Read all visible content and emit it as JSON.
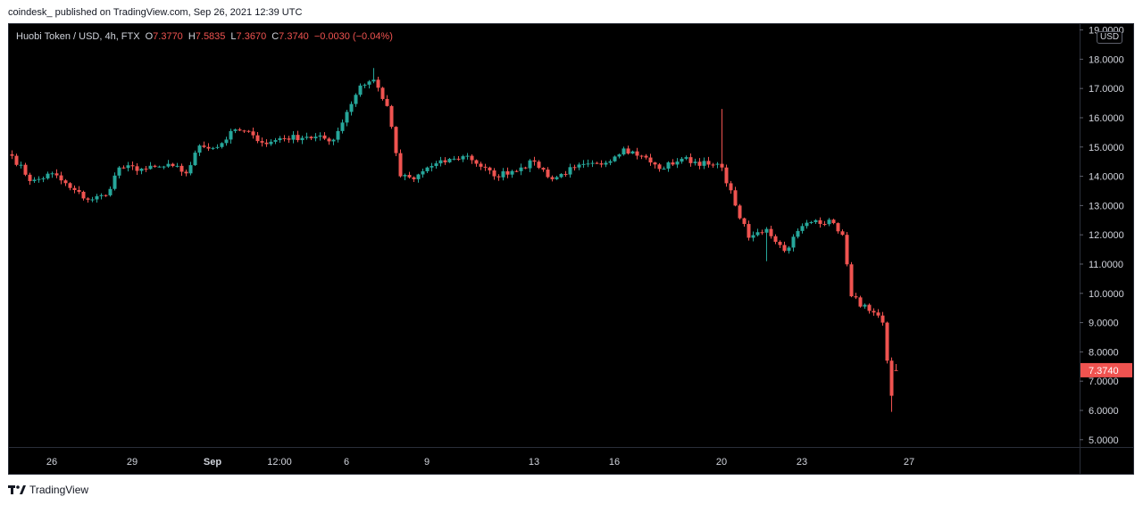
{
  "header": {
    "publisher": "coindesk_ published on TradingView.com, Sep 26, 2021 12:39 UTC"
  },
  "legend": {
    "symbol": "Huobi Token / USD, 4h, FTX",
    "open_label": "O",
    "open": "7.3770",
    "high_label": "H",
    "high": "7.5835",
    "low_label": "L",
    "low": "7.3670",
    "close_label": "C",
    "close": "7.3740",
    "change": "−0.0030 (−0.04%)"
  },
  "price_axis": {
    "unit": "USD",
    "labels": [
      "5.0000",
      "6.0000",
      "7.0000",
      "8.0000",
      "9.0000",
      "10.0000",
      "11.0000",
      "12.0000",
      "13.0000",
      "14.0000",
      "15.0000",
      "16.0000",
      "17.0000",
      "18.0000",
      "19.0000"
    ],
    "last_price": "7.3740"
  },
  "time_axis": {
    "labels": [
      "26",
      "29",
      "Sep",
      "12:00",
      "6",
      "9",
      "13",
      "16",
      "20",
      "23",
      "27"
    ],
    "bold": [
      "Sep"
    ]
  },
  "footer": {
    "brand": "TradingView",
    "icon": "tradingview-logo-icon"
  },
  "colors": {
    "up": "#26a69a",
    "down": "#ef5350",
    "background": "#000000",
    "axis_text": "#d1d4dc",
    "last_price_bg": "#ef5350"
  },
  "chart_data": {
    "type": "candlestick",
    "interval": "4h",
    "title": "Huobi Token / USD, 4h, FTX",
    "ylabel": "USD",
    "ylim": [
      4.75,
      19.2
    ],
    "x_ticks": [
      {
        "label": "26",
        "date": "2021-08-26"
      },
      {
        "label": "29",
        "date": "2021-08-29"
      },
      {
        "label": "Sep",
        "date": "2021-09-01"
      },
      {
        "label": "12:00",
        "date": "2021-09-03 12:00"
      },
      {
        "label": "6",
        "date": "2021-09-06"
      },
      {
        "label": "9",
        "date": "2021-09-09"
      },
      {
        "label": "13",
        "date": "2021-09-13"
      },
      {
        "label": "16",
        "date": "2021-09-16"
      },
      {
        "label": "20",
        "date": "2021-09-20"
      },
      {
        "label": "23",
        "date": "2021-09-23"
      },
      {
        "label": "27",
        "date": "2021-09-27"
      }
    ],
    "anchors": [
      [
        "2021-08-24 12:00",
        14.7
      ],
      [
        "2021-08-25 06:00",
        13.8
      ],
      [
        "2021-08-26 00:00",
        14.1
      ],
      [
        "2021-08-26 16:00",
        13.6
      ],
      [
        "2021-08-27 08:00",
        13.2
      ],
      [
        "2021-08-28 00:00",
        13.35
      ],
      [
        "2021-08-28 12:00",
        14.3
      ],
      [
        "2021-08-29 12:00",
        14.25
      ],
      [
        "2021-08-30 12:00",
        14.35
      ],
      [
        "2021-08-31 00:00",
        14.1
      ],
      [
        "2021-08-31 12:00",
        15.05
      ],
      [
        "2021-09-01 04:00",
        15.0
      ],
      [
        "2021-09-01 20:00",
        15.6
      ],
      [
        "2021-09-02 12:00",
        15.4
      ],
      [
        "2021-09-03 00:00",
        15.1
      ],
      [
        "2021-09-03 12:00",
        15.3
      ],
      [
        "2021-09-04 12:00",
        15.35
      ],
      [
        "2021-09-05 12:00",
        15.25
      ],
      [
        "2021-09-06 00:00",
        16.2
      ],
      [
        "2021-09-06 12:00",
        17.1
      ],
      [
        "2021-09-07 00:00",
        17.3
      ],
      [
        "2021-09-07 12:00",
        16.4
      ],
      [
        "2021-09-08 00:00",
        14.0
      ],
      [
        "2021-09-08 12:00",
        13.9
      ],
      [
        "2021-09-09 00:00",
        14.3
      ],
      [
        "2021-09-10 00:00",
        14.6
      ],
      [
        "2021-09-10 12:00",
        14.7
      ],
      [
        "2021-09-11 12:00",
        14.0
      ],
      [
        "2021-09-12 12:00",
        14.3
      ],
      [
        "2021-09-13 00:00",
        14.5
      ],
      [
        "2021-09-13 16:00",
        13.9
      ],
      [
        "2021-09-14 12:00",
        14.3
      ],
      [
        "2021-09-15 12:00",
        14.4
      ],
      [
        "2021-09-16 08:00",
        14.95
      ],
      [
        "2021-09-17 00:00",
        14.7
      ],
      [
        "2021-09-17 16:00",
        14.25
      ],
      [
        "2021-09-18 12:00",
        14.6
      ],
      [
        "2021-09-19 12:00",
        14.4
      ],
      [
        "2021-09-20 00:00",
        14.3
      ],
      [
        "2021-09-20 12:00",
        13.0
      ],
      [
        "2021-09-21 00:00",
        11.9
      ],
      [
        "2021-09-21 16:00",
        12.2
      ],
      [
        "2021-09-22 08:00",
        11.45
      ],
      [
        "2021-09-23 00:00",
        12.3
      ],
      [
        "2021-09-23 12:00",
        12.5
      ],
      [
        "2021-09-24 04:00",
        12.4
      ],
      [
        "2021-09-24 12:00",
        12.0
      ],
      [
        "2021-09-24 20:00",
        9.9
      ],
      [
        "2021-09-25 12:00",
        9.4
      ],
      [
        "2021-09-26 00:00",
        9.0
      ],
      [
        "2021-09-26 04:00",
        7.7
      ],
      [
        "2021-09-26 08:00",
        6.5
      ],
      [
        "2021-09-26 12:00",
        7.374
      ]
    ],
    "extremes": [
      {
        "date": "2021-09-07 00:00",
        "high": 17.7
      },
      {
        "date": "2021-09-20 00:00",
        "high": 16.3
      },
      {
        "date": "2021-09-21 16:00",
        "low": 11.1
      },
      {
        "date": "2021-09-26 08:00",
        "low": 5.95
      }
    ],
    "last": {
      "open": 7.377,
      "high": 7.5835,
      "low": 7.367,
      "close": 7.374,
      "change": -0.003,
      "change_pct": -0.04
    }
  }
}
